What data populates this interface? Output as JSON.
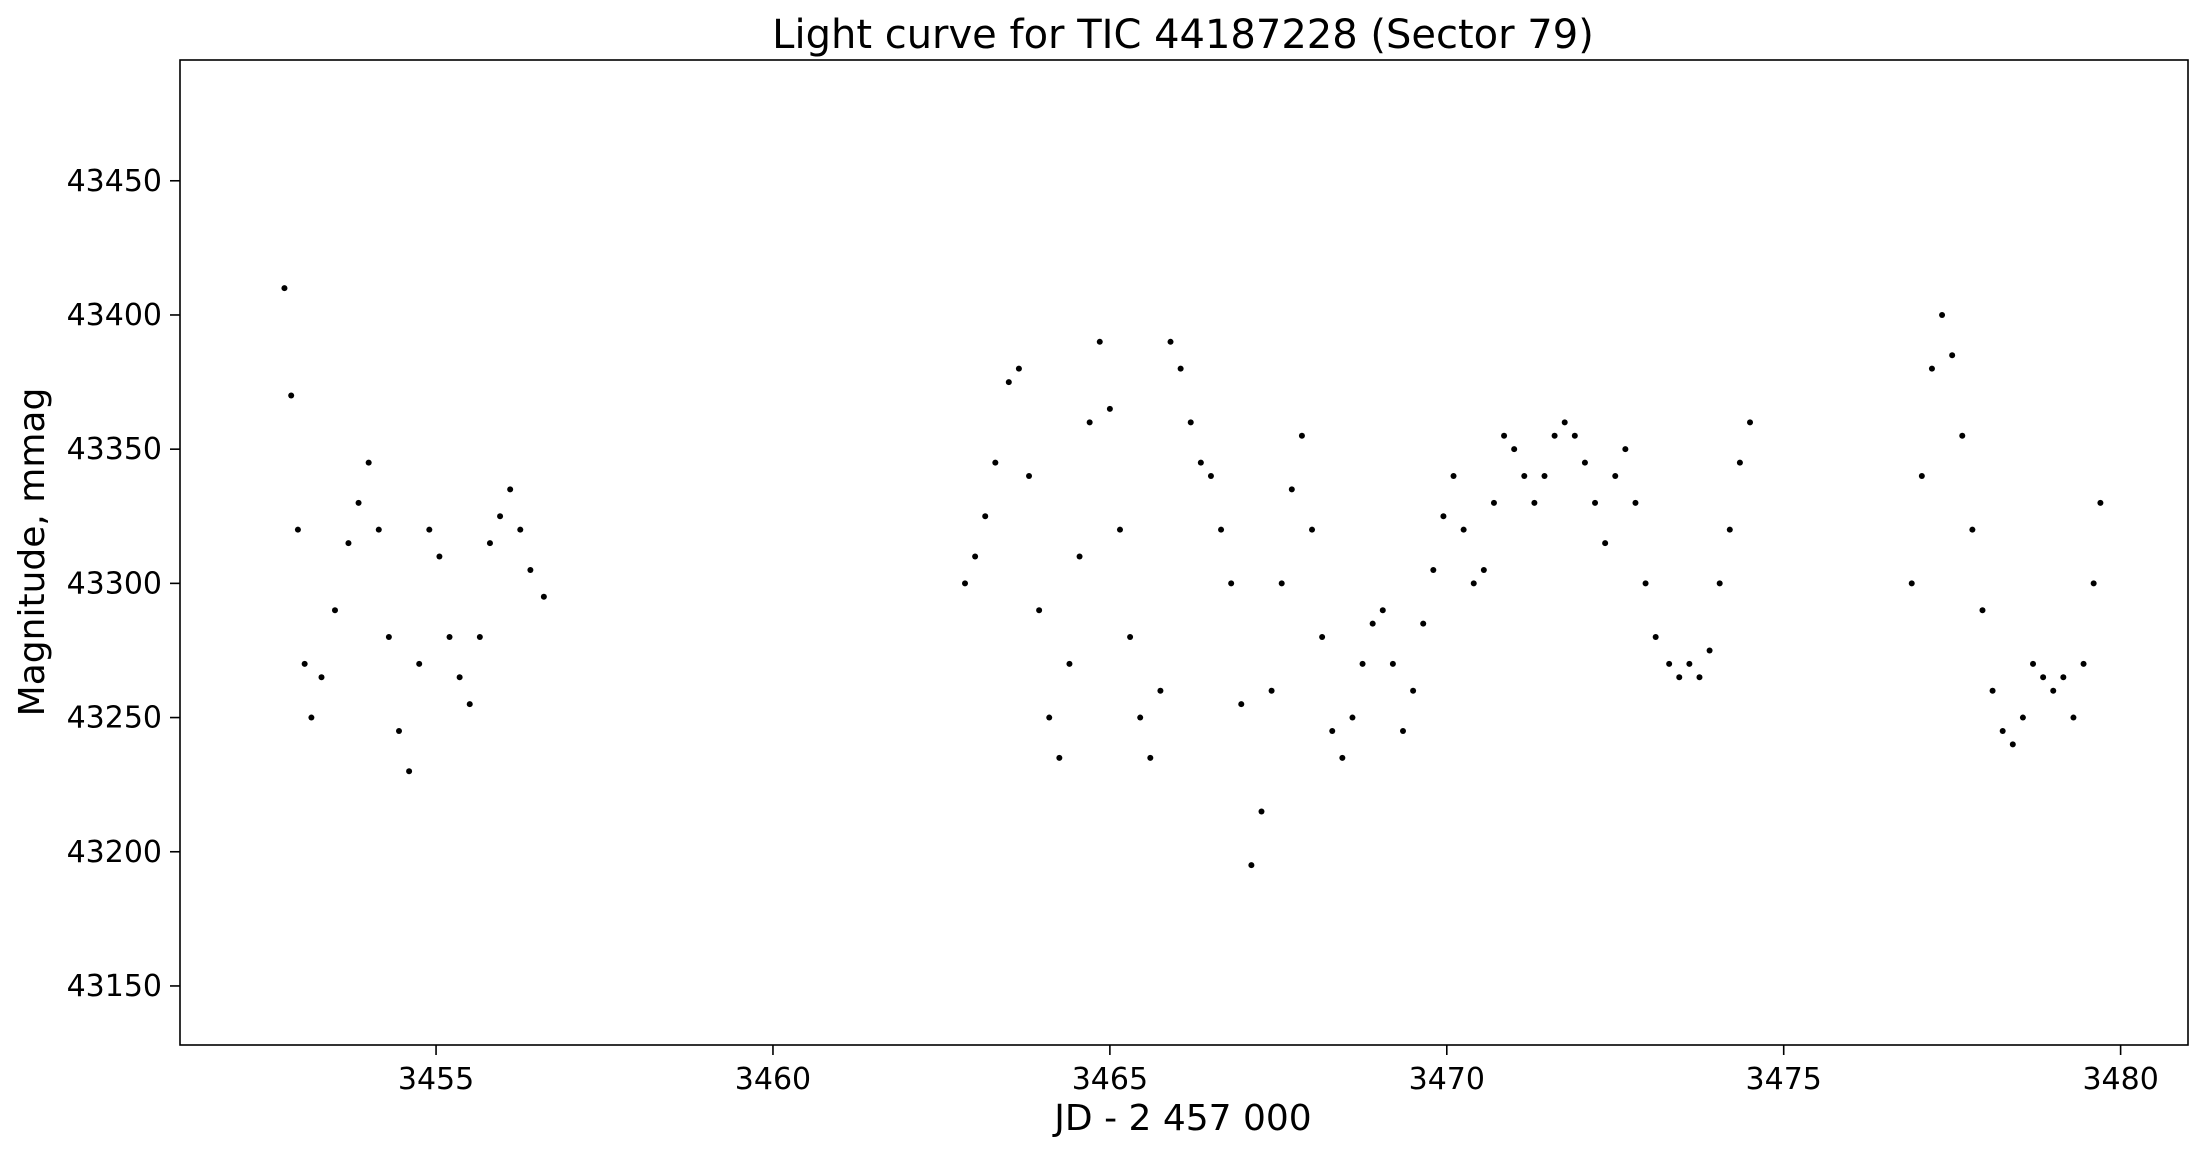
{
  "chart_data": {
    "type": "scatter",
    "title": "Light curve for TIC 44187228 (Sector 79)",
    "xlabel": "JD - 2 457 000",
    "ylabel": "Magnitude, mmag",
    "xlim": [
      3451.2,
      3481.0
    ],
    "ylim": [
      43128,
      43495
    ],
    "y_inverted": false,
    "grid": false,
    "legend": false,
    "marker_color": "#000000",
    "x_ticks": [
      3455,
      3460,
      3465,
      3470,
      3475,
      3480
    ],
    "y_ticks": [
      43150,
      43200,
      43250,
      43300,
      43350,
      43400,
      43450
    ],
    "x_tick_labels": [
      "3455",
      "3460",
      "3465",
      "3470",
      "3475",
      "3480"
    ],
    "y_tick_labels": [
      "43150",
      "43200",
      "43250",
      "43300",
      "43350",
      "43400",
      "43450"
    ],
    "x": [
      3452.75,
      3452.85,
      3452.95,
      3453.05,
      3453.15,
      3453.3,
      3453.5,
      3453.7,
      3453.85,
      3454.0,
      3454.15,
      3454.3,
      3454.45,
      3454.6,
      3454.75,
      3454.9,
      3455.05,
      3455.2,
      3455.35,
      3455.5,
      3455.65,
      3455.8,
      3455.95,
      3456.1,
      3456.25,
      3456.4,
      3456.6,
      3462.85,
      3463.0,
      3463.15,
      3463.3,
      3463.5,
      3463.65,
      3463.8,
      3463.95,
      3464.1,
      3464.25,
      3464.4,
      3464.55,
      3464.7,
      3464.85,
      3465.0,
      3465.15,
      3465.3,
      3465.45,
      3465.6,
      3465.75,
      3465.9,
      3466.05,
      3466.2,
      3466.35,
      3466.5,
      3466.65,
      3466.8,
      3466.95,
      3467.1,
      3467.25,
      3467.4,
      3467.55,
      3467.7,
      3467.85,
      3468.0,
      3468.15,
      3468.3,
      3468.45,
      3468.6,
      3468.75,
      3468.9,
      3469.05,
      3469.2,
      3469.35,
      3469.5,
      3469.65,
      3469.8,
      3469.95,
      3470.1,
      3470.25,
      3470.4,
      3470.55,
      3470.7,
      3470.85,
      3471.0,
      3471.15,
      3471.3,
      3471.45,
      3471.6,
      3471.75,
      3471.9,
      3472.05,
      3472.2,
      3472.35,
      3472.5,
      3472.65,
      3472.8,
      3472.95,
      3473.1,
      3473.3,
      3473.45,
      3473.6,
      3473.75,
      3473.9,
      3474.05,
      3474.2,
      3474.35,
      3474.5,
      3476.9,
      3477.05,
      3477.2,
      3477.35,
      3477.5,
      3477.65,
      3477.8,
      3477.95,
      3478.1,
      3478.25,
      3478.4,
      3478.55,
      3478.7,
      3478.85,
      3479.0,
      3479.15,
      3479.3,
      3479.45,
      3479.6,
      3479.7
    ],
    "y": [
      43410,
      43370,
      43320,
      43270,
      43250,
      43265,
      43290,
      43315,
      43330,
      43345,
      43320,
      43280,
      43245,
      43230,
      43270,
      43320,
      43310,
      43280,
      43265,
      43255,
      43280,
      43315,
      43325,
      43335,
      43320,
      43305,
      43295,
      43300,
      43310,
      43325,
      43345,
      43375,
      43380,
      43340,
      43290,
      43250,
      43235,
      43270,
      43310,
      43360,
      43390,
      43365,
      43320,
      43280,
      43250,
      43235,
      43260,
      43390,
      43380,
      43360,
      43345,
      43340,
      43320,
      43300,
      43255,
      43195,
      43215,
      43260,
      43300,
      43335,
      43355,
      43320,
      43280,
      43245,
      43235,
      43250,
      43270,
      43285,
      43290,
      43270,
      43245,
      43260,
      43285,
      43305,
      43325,
      43340,
      43320,
      43300,
      43305,
      43330,
      43355,
      43350,
      43340,
      43330,
      43340,
      43355,
      43360,
      43355,
      43345,
      43330,
      43315,
      43340,
      43350,
      43330,
      43300,
      43280,
      43270,
      43265,
      43270,
      43265,
      43275,
      43300,
      43320,
      43345,
      43360,
      43300,
      43340,
      43380,
      43400,
      43385,
      43355,
      43320,
      43290,
      43260,
      43245,
      43240,
      43250,
      43270,
      43265,
      43260,
      43265,
      43250,
      43270,
      43300,
      43330
    ]
  }
}
